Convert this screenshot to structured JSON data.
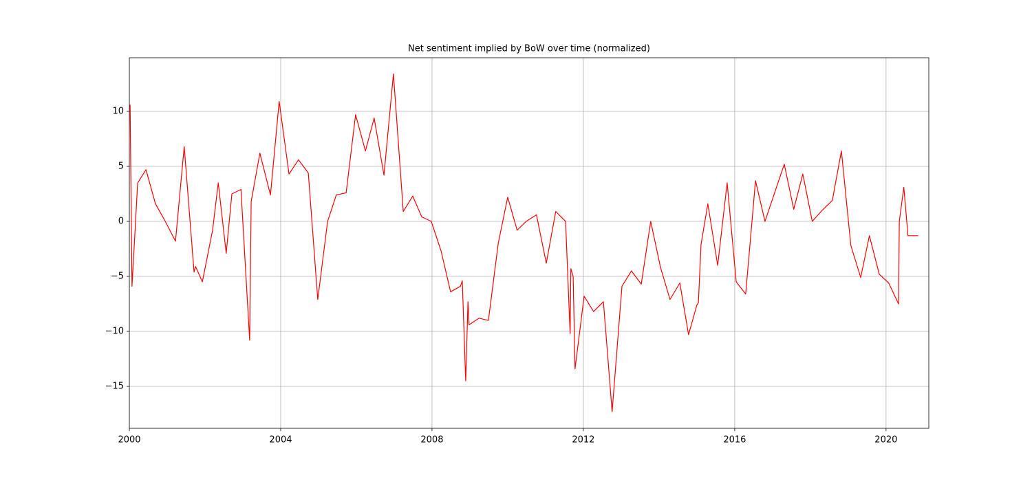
{
  "chart_data": {
    "type": "line",
    "title": "Net sentiment implied by BoW over time (normalized)",
    "x": [
      2000.02,
      2000.07,
      2000.22,
      2000.44,
      2000.69,
      2000.95,
      2001.22,
      2001.45,
      2001.71,
      2001.75,
      2001.93,
      2002.2,
      2002.35,
      2002.56,
      2002.71,
      2002.95,
      2003.18,
      2003.22,
      2003.45,
      2003.73,
      2003.96,
      2004.22,
      2004.47,
      2004.73,
      2004.98,
      2005.24,
      2005.47,
      2005.73,
      2005.98,
      2006.24,
      2006.47,
      2006.73,
      2006.98,
      2007.24,
      2007.49,
      2007.73,
      2007.98,
      2008.24,
      2008.49,
      2008.75,
      2008.8,
      2008.89,
      2008.95,
      2008.98,
      2009.24,
      2009.49,
      2009.75,
      2010.0,
      2010.25,
      2010.49,
      2010.76,
      2011.02,
      2011.27,
      2011.53,
      2011.65,
      2011.67,
      2011.73,
      2011.78,
      2012.02,
      2012.27,
      2012.53,
      2012.76,
      2013.02,
      2013.27,
      2013.53,
      2013.78,
      2014.04,
      2014.29,
      2014.55,
      2014.78,
      2015.0,
      2015.04,
      2015.11,
      2015.29,
      2015.55,
      2015.8,
      2016.04,
      2016.29,
      2016.55,
      2016.8,
      2017.31,
      2017.56,
      2017.8,
      2018.05,
      2018.31,
      2018.58,
      2018.82,
      2019.07,
      2019.33,
      2019.56,
      2019.82,
      2020.07,
      2020.33,
      2020.35,
      2020.47,
      2020.58,
      2020.85
    ],
    "series": [
      {
        "color": "#ff0000",
        "values": [
          10.6,
          -5.9,
          3.5,
          4.7,
          1.6,
          0,
          -1.8,
          6.8,
          -4.6,
          -4.1,
          -5.5,
          -0.8,
          3.5,
          -2.9,
          2.5,
          2.9,
          -10.8,
          1.8,
          6.2,
          2.4,
          10.9,
          4.3,
          5.6,
          4.4,
          -7.1,
          0,
          2.4,
          2.6,
          9.7,
          6.4,
          9.4,
          4.2,
          13.4,
          0.9,
          2.3,
          0.4,
          0,
          -2.7,
          -6.4,
          -5.9,
          -5.4,
          -14.5,
          -7.3,
          -9.4,
          -8.8,
          -9.0,
          -2.0,
          2.2,
          -0.8,
          0,
          0.6,
          -3.8,
          0.9,
          0,
          -10.2,
          -4.3,
          -5.0,
          -13.4,
          -6.8,
          -8.2,
          -7.3,
          -17.3,
          -5.9,
          -4.5,
          -5.7,
          0,
          -4.2,
          -7.1,
          -5.6,
          -10.3,
          -7.6,
          -7.4,
          -2.1,
          1.6,
          -4.0,
          3.5,
          -5.5,
          -6.6,
          3.7,
          0,
          5.2,
          1.1,
          4.3,
          0,
          1.0,
          1.9,
          6.4,
          -2.2,
          -5.1,
          -1.3,
          -4.8,
          -5.6,
          -7.5,
          0,
          3.1,
          -1.3,
          -1.3
        ]
      }
    ],
    "xlim": [
      2000,
      2021.13
    ],
    "xticks": [
      2000,
      2004,
      2008,
      2012,
      2016,
      2020
    ],
    "ylim": [
      -18.81,
      14.875
    ],
    "yticks": [
      {
        "value": -15,
        "label": "−15"
      },
      {
        "value": -10,
        "label": "−10"
      },
      {
        "value": -5,
        "label": "−5"
      },
      0,
      5,
      10
    ],
    "grid": true
  }
}
